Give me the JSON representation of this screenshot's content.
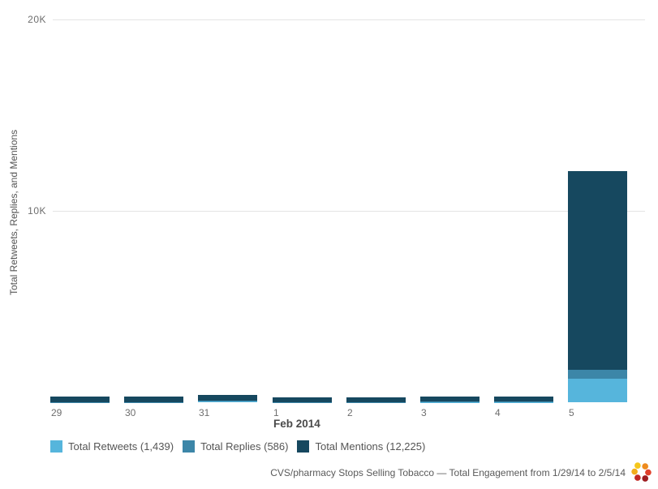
{
  "chart_data": {
    "type": "bar",
    "stacked": true,
    "categories": [
      "29",
      "30",
      "31",
      "1",
      "2",
      "3",
      "4",
      "5"
    ],
    "x_axis_label": "Feb 2014",
    "ylabel": "Total Retweets, Replies, and Mentions",
    "ylim": [
      0,
      20000
    ],
    "y_ticks": [
      {
        "label": "20K",
        "value": 20000
      },
      {
        "label": "10K",
        "value": 10000
      }
    ],
    "grid": "horizontal",
    "legend_position": "bottom-left",
    "series": [
      {
        "name": "Total Retweets",
        "total": 1439,
        "color": "#56b5dc",
        "values": [
          20,
          20,
          80,
          15,
          15,
          25,
          25,
          1239
        ]
      },
      {
        "name": "Total Replies",
        "total": 586,
        "color": "#3c86a8",
        "values": [
          15,
          15,
          40,
          10,
          10,
          18,
          18,
          460
        ]
      },
      {
        "name": "Total Mentions",
        "total": 12225,
        "color": "#16485f",
        "values": [
          270,
          265,
          300,
          235,
          230,
          255,
          260,
          10410
        ]
      }
    ]
  },
  "legend": {
    "items": [
      {
        "label": "Total Retweets (1,439)",
        "color": "#56b5dc"
      },
      {
        "label": "Total Replies (586)",
        "color": "#3c86a8"
      },
      {
        "label": "Total Mentions (12,225)",
        "color": "#16485f"
      }
    ]
  },
  "footer": {
    "caption": "CVS/pharmacy Stops Selling Tobacco — Total Engagement from 1/29/14 to 2/5/14",
    "logo_dot_colors": [
      "#f5c71b",
      "#ee8b1e",
      "#e0402a",
      "#9d1c20",
      "#c22a25",
      "#f2ae1c"
    ]
  },
  "colors": {
    "gridline": "#e4e4e4",
    "tick_text": "#6e6e6e",
    "background": "#ffffff"
  }
}
